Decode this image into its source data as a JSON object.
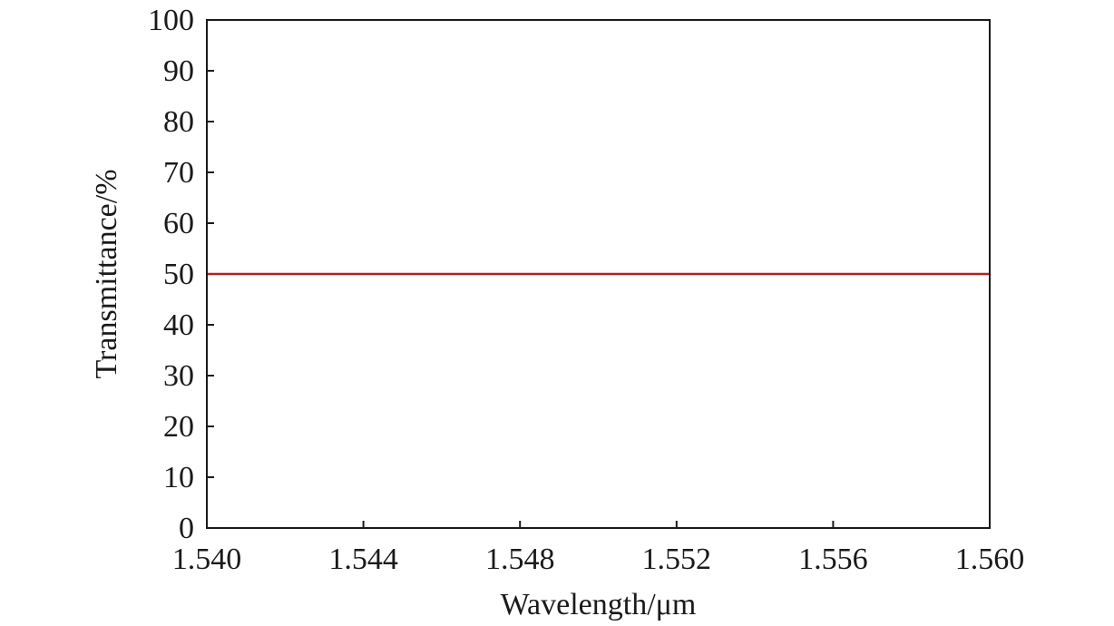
{
  "chart_data": {
    "type": "line",
    "xlabel": "Wavelength/μm",
    "ylabel": "Transmittance/%",
    "xlim": [
      1.54,
      1.56
    ],
    "ylim": [
      0,
      100
    ],
    "x_ticks": [
      "1.540",
      "1.544",
      "1.548",
      "1.552",
      "1.556",
      "1.560"
    ],
    "x_tick_values": [
      1.54,
      1.544,
      1.548,
      1.552,
      1.556,
      1.56
    ],
    "y_ticks": [
      "0",
      "10",
      "20",
      "30",
      "40",
      "50",
      "60",
      "70",
      "80",
      "90",
      "100"
    ],
    "y_tick_values": [
      0,
      10,
      20,
      30,
      40,
      50,
      60,
      70,
      80,
      90,
      100
    ],
    "grid": false,
    "series": [
      {
        "color": "#b22222",
        "x": [
          1.54,
          1.56
        ],
        "y": [
          50,
          50
        ]
      }
    ]
  }
}
